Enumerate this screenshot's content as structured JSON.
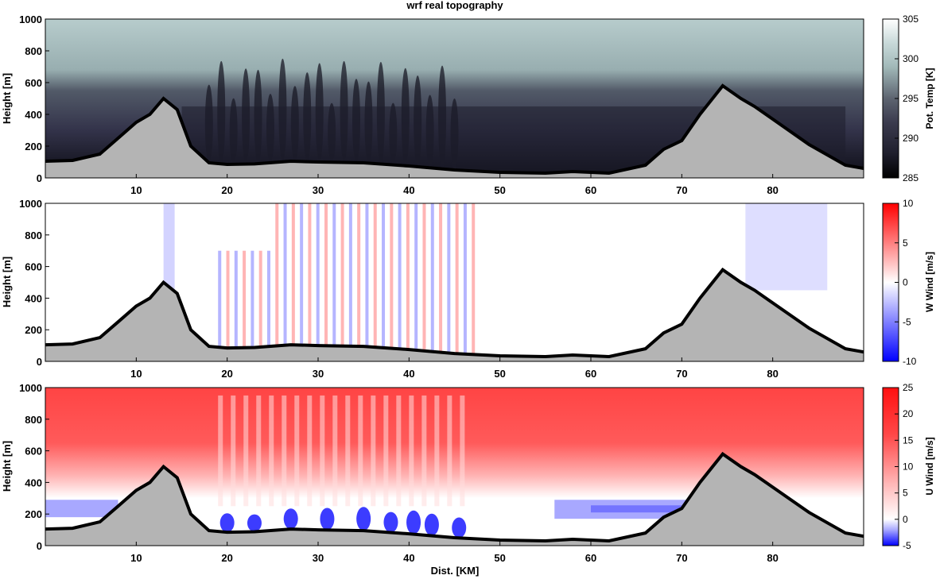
{
  "title": "wrf real topography",
  "xlabel": "Dist. [KM]",
  "x_ticks": [
    10,
    20,
    30,
    40,
    50,
    60,
    70,
    80
  ],
  "chart_data": [
    {
      "type": "heatmap",
      "title": "wrf real topography",
      "ylabel": "Height [m]",
      "xlabel": "",
      "xlim": [
        0,
        90
      ],
      "ylim": [
        0,
        1000
      ],
      "y_ticks": [
        0,
        200,
        400,
        600,
        800,
        1000
      ],
      "colorbar": {
        "label": "Pot. Temp [K]",
        "range": [
          285,
          305
        ],
        "ticks": [
          285,
          290,
          295,
          300,
          305
        ],
        "colors": [
          "#000000",
          "#2c2c3f",
          "#4d4d60",
          "#7e8a92",
          "#a9c1c1",
          "#e4efef",
          "#ffffff"
        ]
      },
      "field": "potential_temperature",
      "terrain": {
        "x": [
          0,
          3,
          6,
          8,
          10,
          11.5,
          13,
          14.5,
          16,
          18,
          20,
          23,
          27,
          30,
          35,
          40,
          45,
          50,
          55,
          58,
          62,
          66,
          68,
          70,
          72,
          74.5,
          76.5,
          78,
          80,
          84,
          88,
          90
        ],
        "height": [
          105,
          110,
          150,
          250,
          350,
          400,
          500,
          430,
          200,
          95,
          85,
          88,
          105,
          100,
          95,
          75,
          50,
          35,
          30,
          40,
          30,
          80,
          180,
          235,
          400,
          580,
          500,
          450,
          370,
          210,
          80,
          60
        ]
      }
    },
    {
      "type": "heatmap",
      "ylabel": "Height [m]",
      "xlabel": "",
      "xlim": [
        0,
        90
      ],
      "ylim": [
        0,
        1000
      ],
      "y_ticks": [
        0,
        200,
        400,
        600,
        800,
        1000
      ],
      "colorbar": {
        "label": "W Wind [m/s]",
        "range": [
          -10,
          10
        ],
        "ticks": [
          -10,
          -5,
          0,
          5,
          10
        ],
        "colors": [
          "#0000ff",
          "#a0a0ff",
          "#ffffff",
          "#ffa0a0",
          "#ff0000"
        ]
      },
      "field": "vertical_wind"
    },
    {
      "type": "heatmap",
      "ylabel": "Height [m]",
      "xlabel": "Dist. [KM]",
      "xlim": [
        0,
        90
      ],
      "ylim": [
        0,
        1000
      ],
      "y_ticks": [
        0,
        200,
        400,
        600,
        800,
        1000
      ],
      "colorbar": {
        "label": "U Wind [m/s]",
        "range": [
          -5,
          25
        ],
        "ticks": [
          -5,
          0,
          5,
          10,
          15,
          20,
          25
        ],
        "colors": [
          "#0000ff",
          "#a0a0ff",
          "#ffffff",
          "#ffb0b0",
          "#ff6060",
          "#ff2020"
        ]
      },
      "field": "horizontal_wind"
    }
  ]
}
